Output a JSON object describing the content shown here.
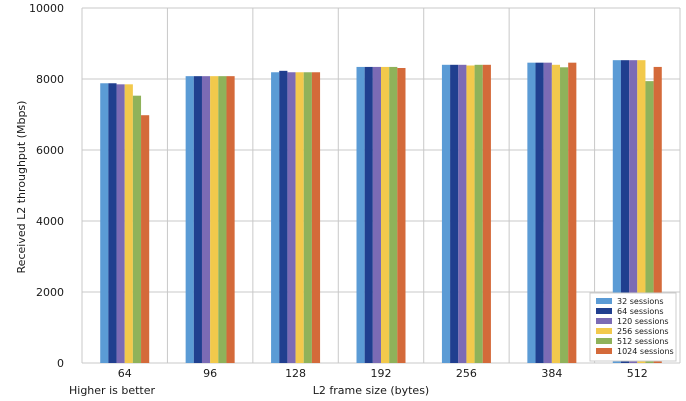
{
  "chart_data": {
    "type": "bar",
    "title": "",
    "xlabel": "L2 frame size (bytes)",
    "ylabel": "Received L2 throughput (Mbps)",
    "note": "Higher is better",
    "categories": [
      "64",
      "96",
      "128",
      "192",
      "256",
      "384",
      "512"
    ],
    "ylim": [
      0,
      10000
    ],
    "yticks": [
      "0",
      "2000",
      "4000",
      "6000",
      "8000",
      "10000"
    ],
    "grid": true,
    "legend_position": "bottom-right",
    "series": [
      {
        "name": "32 sessions",
        "color": "#5B9BD5",
        "values": [
          7880,
          8080,
          8190,
          8340,
          8400,
          8460,
          8530
        ]
      },
      {
        "name": "64 sessions",
        "color": "#203F8F",
        "values": [
          7880,
          8080,
          8230,
          8340,
          8400,
          8460,
          8530
        ]
      },
      {
        "name": "120 sessions",
        "color": "#7B6BB5",
        "values": [
          7850,
          8080,
          8190,
          8340,
          8400,
          8460,
          8530
        ]
      },
      {
        "name": "256 sessions",
        "color": "#F2C94C",
        "values": [
          7850,
          8080,
          8190,
          8340,
          8380,
          8400,
          8530
        ]
      },
      {
        "name": "512 sessions",
        "color": "#8FB25A",
        "values": [
          7530,
          8080,
          8190,
          8340,
          8400,
          8330,
          7940
        ]
      },
      {
        "name": "1024 sessions",
        "color": "#D46A3A",
        "values": [
          6980,
          8080,
          8190,
          8310,
          8400,
          8460,
          8340
        ]
      }
    ]
  }
}
